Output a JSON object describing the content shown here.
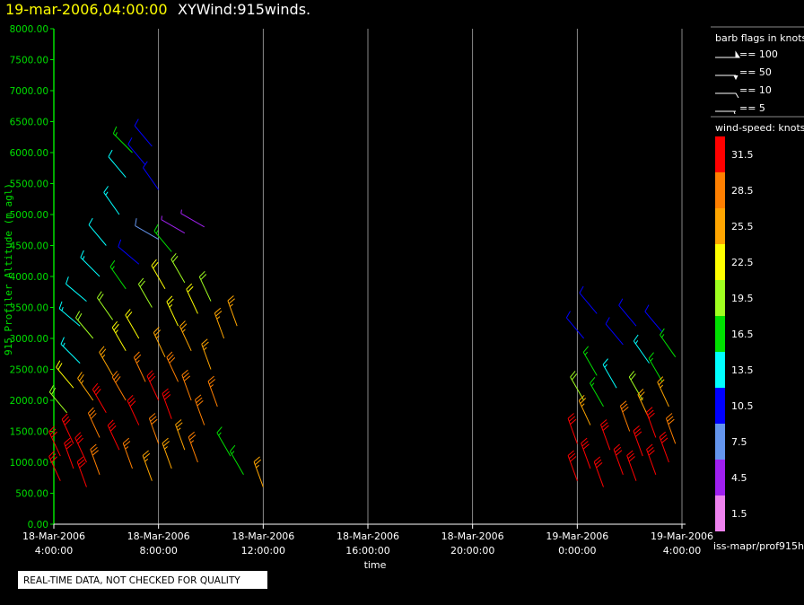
{
  "chart_data": {
    "type": "windbarb",
    "title": "19-mar-2006,04:00:00",
    "subtitle": "XYWind:915winds.",
    "y_label": "915 Profiler Altitude (m agl)",
    "x_label": "time",
    "note": "REAL-TIME DATA, NOT CHECKED FOR QUALITY",
    "source": "iss-mapr/prof915h",
    "xlim": [
      "2006-03-18 04:00",
      "2006-03-19 04:00"
    ],
    "xticks": [
      {
        "value": "2006-03-18 04:00",
        "label": [
          "18-Mar-2006",
          "4:00:00"
        ]
      },
      {
        "value": "2006-03-18 08:00",
        "label": [
          "18-Mar-2006",
          "8:00:00"
        ]
      },
      {
        "value": "2006-03-18 12:00",
        "label": [
          "18-Mar-2006",
          "12:00:00"
        ]
      },
      {
        "value": "2006-03-18 16:00",
        "label": [
          "18-Mar-2006",
          "16:00:00"
        ]
      },
      {
        "value": "2006-03-18 20:00",
        "label": [
          "18-Mar-2006",
          "20:00:00"
        ]
      },
      {
        "value": "2006-03-19 00:00",
        "label": [
          "19-Mar-2006",
          "0:00:00"
        ]
      },
      {
        "value": "2006-03-19 04:00",
        "label": [
          "19-Mar-2006",
          "4:00:00"
        ]
      }
    ],
    "ylim": [
      0,
      8000
    ],
    "yticks": [
      {
        "value": 0,
        "label": "0.00"
      },
      {
        "value": 500,
        "label": "500.00"
      },
      {
        "value": 1000,
        "label": "1000.00"
      },
      {
        "value": 1500,
        "label": "1500.00"
      },
      {
        "value": 2000,
        "label": "2000.00"
      },
      {
        "value": 2500,
        "label": "2500.00"
      },
      {
        "value": 3000,
        "label": "3000.00"
      },
      {
        "value": 3500,
        "label": "3500.00"
      },
      {
        "value": 4000,
        "label": "4000.00"
      },
      {
        "value": 4500,
        "label": "4500.00"
      },
      {
        "value": 5000,
        "label": "5000.00"
      },
      {
        "value": 5500,
        "label": "5500.00"
      },
      {
        "value": 6000,
        "label": "6000.00"
      },
      {
        "value": 6500,
        "label": "6500.00"
      },
      {
        "value": 7000,
        "label": "7000.00"
      },
      {
        "value": 7500,
        "label": "7500.00"
      },
      {
        "value": 8000,
        "label": "8000.00"
      }
    ],
    "grid": true,
    "barb_legend": {
      "title": "barb flags in knots",
      "entries": [
        "== 100",
        "== 50",
        "== 10",
        "== 5"
      ]
    },
    "speed_legend": {
      "title": "wind-speed: knots",
      "levels": [
        31.5,
        28.5,
        25.5,
        22.5,
        19.5,
        16.5,
        13.5,
        10.5,
        7.5,
        4.5,
        1.5
      ],
      "colors": [
        "#ff0000",
        "#ff7f00",
        "#ffa500",
        "#ffff00",
        "#a0ff20",
        "#00e000",
        "#00ffff",
        "#0000ff",
        "#6495ed",
        "#a020f0",
        "#ee82ee"
      ]
    },
    "barbs": {
      "x": [
        "2006-03-18 04:15",
        "2006-03-18 04:15",
        "2006-03-18 04:45",
        "2006-03-18 04:45",
        "2006-03-18 05:15",
        "2006-03-18 05:15",
        "2006-03-18 05:45",
        "2006-03-18 05:45",
        "2006-03-18 04:30",
        "2006-03-18 04:45",
        "2006-03-18 05:00",
        "2006-03-18 05:00",
        "2006-03-18 05:15",
        "2006-03-18 05:30",
        "2006-03-18 05:30",
        "2006-03-18 05:45",
        "2006-03-18 06:00",
        "2006-03-18 06:00",
        "2006-03-18 06:15",
        "2006-03-18 06:15",
        "2006-03-18 06:30",
        "2006-03-18 06:30",
        "2006-03-18 06:45",
        "2006-03-18 06:45",
        "2006-03-18 06:45",
        "2006-03-18 06:45",
        "2006-03-18 07:00",
        "2006-03-18 07:00",
        "2006-03-18 07:15",
        "2006-03-18 07:15",
        "2006-03-18 07:15",
        "2006-03-18 07:30",
        "2006-03-18 07:30",
        "2006-03-18 07:45",
        "2006-03-18 07:45",
        "2006-03-18 07:45",
        "2006-03-18 08:00",
        "2006-03-18 08:00",
        "2006-03-18 08:00",
        "2006-03-18 08:00",
        "2006-03-18 08:15",
        "2006-03-18 08:15",
        "2006-03-18 08:30",
        "2006-03-18 08:30",
        "2006-03-18 08:30",
        "2006-03-18 08:45",
        "2006-03-18 08:45",
        "2006-03-18 09:00",
        "2006-03-18 09:00",
        "2006-03-18 09:00",
        "2006-03-18 09:15",
        "2006-03-18 09:15",
        "2006-03-18 09:30",
        "2006-03-18 09:30",
        "2006-03-18 09:45",
        "2006-03-18 09:45",
        "2006-03-18 10:00",
        "2006-03-18 10:00",
        "2006-03-18 10:15",
        "2006-03-18 10:30",
        "2006-03-18 10:45",
        "2006-03-18 11:00",
        "2006-03-18 11:15",
        "2006-03-18 12:00",
        "2006-03-19 00:00",
        "2006-03-19 00:00",
        "2006-03-19 00:15",
        "2006-03-19 00:15",
        "2006-03-19 00:30",
        "2006-03-19 00:30",
        "2006-03-19 00:45",
        "2006-03-19 00:45",
        "2006-03-19 01:00",
        "2006-03-19 01:00",
        "2006-03-19 01:15",
        "2006-03-19 01:30",
        "2006-03-19 01:45",
        "2006-03-19 01:45",
        "2006-03-19 02:00",
        "2006-03-19 02:15",
        "2006-03-19 02:15",
        "2006-03-19 02:30",
        "2006-03-19 02:30",
        "2006-03-19 02:45",
        "2006-03-19 02:45",
        "2006-03-19 03:00",
        "2006-03-19 03:00",
        "2006-03-19 03:15",
        "2006-03-19 03:15",
        "2006-03-19 03:30",
        "2006-03-19 03:30",
        "2006-03-19 03:45",
        "2006-03-19 03:45"
      ],
      "values": [
        700,
        1100,
        900,
        1300,
        600,
        1000,
        800,
        1400,
        1800,
        2200,
        2600,
        3200,
        3600,
        2000,
        3000,
        4000,
        4500,
        1800,
        2400,
        3300,
        5000,
        1200,
        2000,
        2800,
        3800,
        5600,
        6000,
        900,
        1600,
        3000,
        4200,
        5800,
        2300,
        700,
        3500,
        6100,
        1300,
        2000,
        4600,
        5400,
        2700,
        3800,
        900,
        1700,
        4400,
        2300,
        3200,
        1200,
        4700,
        3900,
        2000,
        2800,
        1000,
        3400,
        1600,
        4800,
        2500,
        3600,
        1900,
        3000,
        1100,
        3200,
        800,
        600,
        700,
        1300,
        2000,
        3000,
        900,
        1600,
        2400,
        3400,
        600,
        1900,
        1200,
        2200,
        800,
        2900,
        1500,
        700,
        3200,
        1100,
        2000,
        1700,
        2600,
        800,
        1400,
        2300,
        3100,
        1000,
        1900,
        2700,
        1300
      ],
      "speed": [
        31,
        30,
        32,
        31,
        31,
        30,
        29,
        28,
        20,
        22,
        14,
        13,
        12,
        24,
        18,
        13,
        12,
        30,
        26,
        20,
        14,
        31,
        29,
        23,
        16,
        12,
        17,
        27,
        31,
        22,
        9,
        10,
        27,
        24,
        19,
        9,
        28,
        31,
        8,
        11,
        25,
        21,
        25,
        30,
        15,
        28,
        23,
        26,
        5,
        19,
        29,
        24,
        27,
        21,
        29,
        5,
        25,
        20,
        27,
        24,
        17,
        25,
        17,
        25,
        31,
        30,
        18,
        11,
        31,
        26,
        15,
        9,
        31,
        17,
        30,
        14,
        31,
        10,
        28,
        31,
        9,
        31,
        20,
        25,
        13,
        31,
        30,
        17,
        10,
        31,
        26,
        15,
        29
      ],
      "direction": [
        335,
        335,
        340,
        335,
        340,
        335,
        340,
        335,
        320,
        320,
        315,
        310,
        310,
        325,
        320,
        315,
        320,
        330,
        330,
        325,
        325,
        335,
        330,
        330,
        325,
        320,
        315,
        340,
        335,
        330,
        310,
        320,
        335,
        340,
        330,
        320,
        340,
        335,
        300,
        325,
        335,
        330,
        340,
        340,
        320,
        335,
        335,
        340,
        300,
        330,
        340,
        335,
        340,
        335,
        340,
        300,
        340,
        335,
        340,
        340,
        330,
        340,
        330,
        340,
        340,
        340,
        330,
        320,
        340,
        335,
        330,
        320,
        340,
        330,
        340,
        330,
        340,
        320,
        340,
        340,
        320,
        340,
        330,
        335,
        325,
        340,
        340,
        330,
        320,
        340,
        335,
        325,
        340
      ]
    }
  }
}
